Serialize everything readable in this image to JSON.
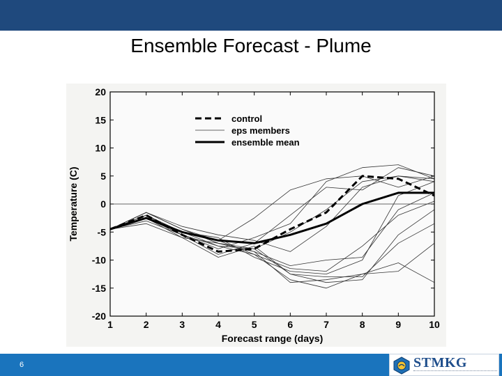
{
  "slide": {
    "title": "Ensemble Forecast - Plume",
    "page_number": "6",
    "logo_text": "STMKG"
  },
  "colors": {
    "header_band": "#1f497d",
    "footer_band": "#1a74bd"
  },
  "chart_data": {
    "type": "line",
    "xlabel": "Forecast range (days)",
    "ylabel": "Temperature (C)",
    "xlim": [
      1,
      10
    ],
    "ylim": [
      -20,
      20
    ],
    "x_ticks": [
      1,
      2,
      3,
      4,
      5,
      6,
      7,
      8,
      9,
      10
    ],
    "y_ticks": [
      -20,
      -15,
      -10,
      -5,
      0,
      5,
      10,
      15,
      20
    ],
    "grid": false,
    "reference_line_y": 0,
    "legend_position": "top-center",
    "x": [
      1,
      2,
      3,
      4,
      5,
      6,
      7,
      8,
      9,
      10
    ],
    "series": [
      {
        "name": "control",
        "style": "dashed",
        "values": [
          -4.5,
          -2,
          -5.5,
          -8.5,
          -8,
          -4.5,
          -1.5,
          5,
          4.5,
          1.5
        ]
      },
      {
        "name": "eps members",
        "style": "thin",
        "members": [
          [
            -4.5,
            -1.5,
            -4.5,
            -7,
            -8,
            -5,
            -1,
            4,
            5,
            4
          ],
          [
            -4.5,
            -2.5,
            -5,
            -6.5,
            -2.5,
            2.5,
            4.5,
            5,
            3,
            5
          ],
          [
            -4.5,
            -3,
            -5.5,
            -9,
            -7,
            -2,
            3,
            2.5,
            6.5,
            5
          ],
          [
            -4.5,
            -2,
            -5,
            -7.5,
            -8,
            -12.5,
            -14,
            -13.5,
            -5.5,
            -1
          ],
          [
            -4.5,
            -1.5,
            -4.5,
            -6.5,
            -9,
            -13.5,
            -15,
            -12.5,
            -12,
            -7
          ],
          [
            -4.5,
            -2.5,
            -6,
            -7,
            -8.5,
            -11,
            -10,
            -9.5,
            -1,
            2
          ],
          [
            -4.5,
            -2,
            -5.5,
            -8,
            -6,
            -3.5,
            4,
            6.5,
            7,
            4.5
          ],
          [
            -4.5,
            -3.5,
            -6,
            -9.5,
            -7.5,
            -12.5,
            -13,
            -13,
            -7,
            -3.5
          ],
          [
            -4.5,
            -1.5,
            -4,
            -5.5,
            -6.5,
            -8.5,
            -4,
            3,
            5,
            4.5
          ],
          [
            -4.5,
            -2,
            -5,
            -6,
            -9.5,
            -12,
            -12.5,
            -10,
            1.5,
            4
          ],
          [
            -4.5,
            -2.5,
            -5.5,
            -7.5,
            -9,
            -11.5,
            -12,
            -7.5,
            -2,
            0.5
          ],
          [
            -4.5,
            -1.5,
            -4.5,
            -7,
            -8.5,
            -14,
            -13.5,
            -12.5,
            -10.5,
            -14
          ]
        ]
      },
      {
        "name": "ensemble mean",
        "style": "thick",
        "values": [
          -4.5,
          -2.5,
          -5,
          -6.5,
          -7,
          -5.5,
          -3.5,
          0,
          2,
          2
        ]
      }
    ]
  }
}
